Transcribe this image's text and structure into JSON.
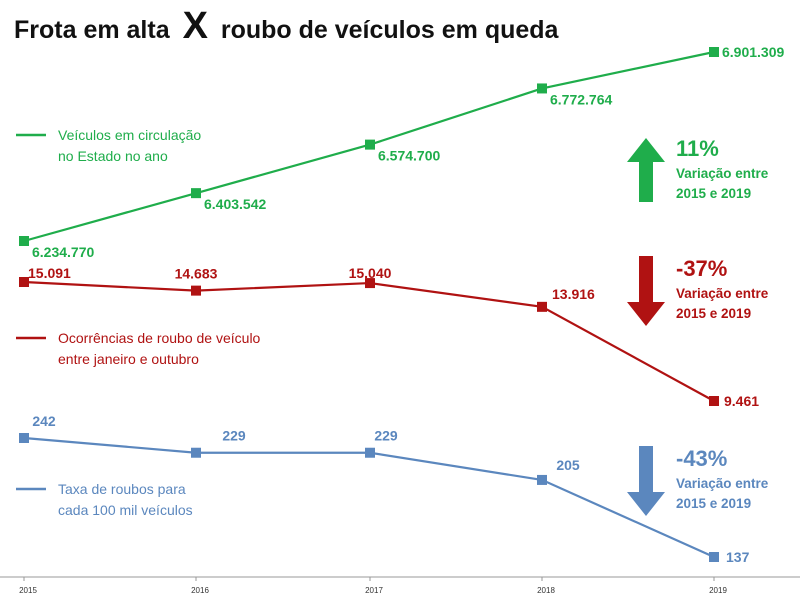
{
  "title": {
    "part1": "Frota em alta",
    "x_mark": "X",
    "part2": "roubo de veículos em queda"
  },
  "colors": {
    "green": "#1fad4b",
    "red": "#b01212",
    "blue": "#5b87be",
    "axis": "#999999",
    "text": "#111111"
  },
  "chart_data": {
    "type": "line",
    "x": [
      "2015",
      "2016",
      "2017",
      "2018",
      "2019"
    ],
    "series": [
      {
        "key": "frota",
        "legend": [
          "Veículos em circulação",
          "no Estado no ano"
        ],
        "values": [
          6234770,
          6403542,
          6574700,
          6772764,
          6901309
        ],
        "labels": [
          "6.234.770",
          "6.403.542",
          "6.574.700",
          "6.772.764",
          "6.901.309"
        ],
        "color": "#1fad4b"
      },
      {
        "key": "roubos",
        "legend": [
          "Ocorrências de roubo de veículo",
          "entre janeiro e outubro"
        ],
        "values": [
          15091,
          14683,
          15040,
          13916,
          9461
        ],
        "labels": [
          "15.091",
          "14.683",
          "15.040",
          "13.916",
          "9.461"
        ],
        "color": "#b01212"
      },
      {
        "key": "taxa",
        "legend": [
          "Taxa de roubos para",
          "cada 100 mil veículos"
        ],
        "values": [
          242,
          229,
          229,
          205,
          137
        ],
        "labels": [
          "242",
          "229",
          "229",
          "205",
          "137"
        ],
        "color": "#5b87be"
      }
    ],
    "annotations": [
      {
        "series": "frota",
        "direction": "up",
        "percent": "11%",
        "line1": "Variação entre",
        "line2": "2015 e 2019"
      },
      {
        "series": "roubos",
        "direction": "down",
        "percent": "-37%",
        "line1": "Variação entre",
        "line2": "2015 e 2019"
      },
      {
        "series": "taxa",
        "direction": "down",
        "percent": "-43%",
        "line1": "Variação entre",
        "line2": "2015 e 2019"
      }
    ]
  }
}
